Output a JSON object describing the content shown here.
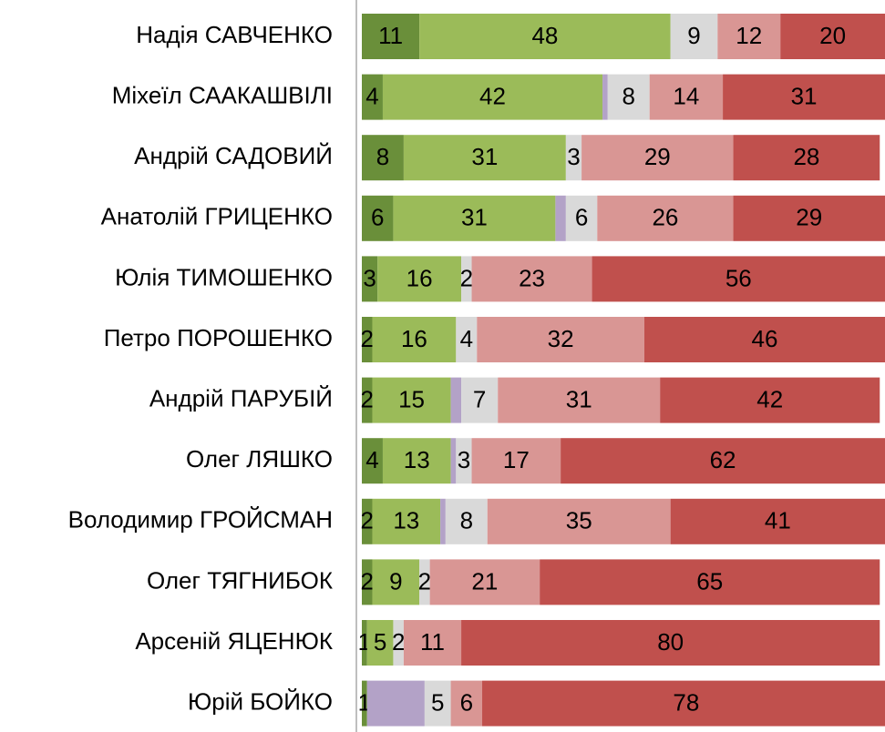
{
  "chart_data": {
    "type": "stacked_barh",
    "categories": [
      "Надія САВЧЕНКО",
      "Міхеїл СААКАШВІЛІ",
      "Андрій САДОВИЙ",
      "Анатолій ГРИЦЕНКО",
      "Юлія ТИМОШЕНКО",
      "Петро ПОРОШЕНКО",
      "Андрій ПАРУБІЙ",
      "Олег ЛЯШКО",
      "Володимир ГРОЙСМАН",
      "Олег ТЯГНИБОК",
      "Арсеній ЯЦЕНЮК",
      "Юрій БОЙКО"
    ],
    "series": [
      {
        "color": "#6a8f3a",
        "values": [
          11,
          4,
          8,
          6,
          3,
          2,
          2,
          4,
          2,
          2,
          1,
          1
        ]
      },
      {
        "color": "#9bbb59",
        "values": [
          48,
          42,
          31,
          31,
          16,
          16,
          15,
          13,
          13,
          9,
          5,
          0
        ]
      },
      {
        "color": "#b3a2c7",
        "labels": false,
        "values": [
          0,
          1,
          0,
          2,
          0,
          0,
          2,
          1,
          1,
          0,
          0,
          11
        ]
      },
      {
        "color": "#d9d9d9",
        "values": [
          9,
          8,
          3,
          6,
          2,
          4,
          7,
          3,
          8,
          2,
          2,
          5
        ]
      },
      {
        "color": "#d99694",
        "values": [
          12,
          14,
          29,
          26,
          23,
          32,
          31,
          17,
          35,
          21,
          11,
          6
        ]
      },
      {
        "color": "#c0504d",
        "values": [
          20,
          31,
          28,
          29,
          56,
          46,
          42,
          62,
          41,
          65,
          80,
          78
        ]
      }
    ],
    "xlim": [
      0,
      100
    ]
  }
}
